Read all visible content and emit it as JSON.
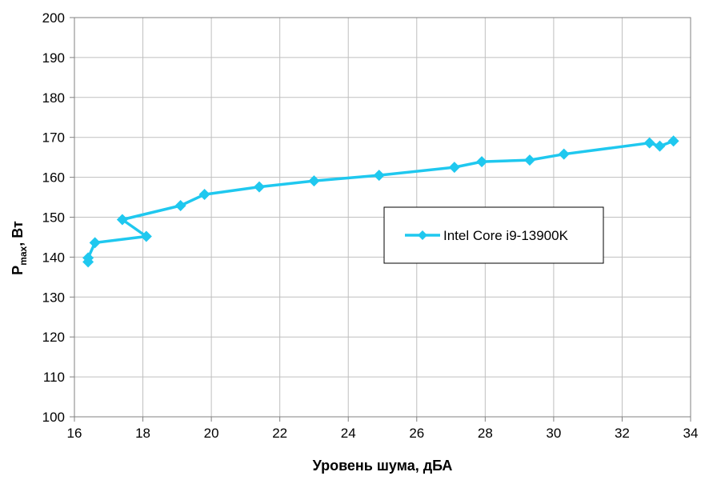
{
  "chart_data": {
    "type": "line",
    "xlabel": "Уровень шума, дБА",
    "ylabel_main": "P",
    "ylabel_sub": "max",
    "ylabel_rest": ", Вт",
    "xlim": [
      16,
      34
    ],
    "ylim": [
      100,
      200
    ],
    "xticks": [
      16,
      18,
      20,
      22,
      24,
      26,
      28,
      30,
      32,
      34
    ],
    "yticks": [
      100,
      110,
      120,
      130,
      140,
      150,
      160,
      170,
      180,
      190,
      200
    ],
    "grid": true,
    "legend_position": "right-middle",
    "series": [
      {
        "name": "Intel Core i9-13900K",
        "color": "#1fc8ef",
        "marker": "diamond",
        "x": [
          16.4,
          16.4,
          16.6,
          18.1,
          17.4,
          19.1,
          19.8,
          21.4,
          23.0,
          24.9,
          27.1,
          27.9,
          29.3,
          30.3,
          32.8,
          33.1,
          33.5
        ],
        "y": [
          138.8,
          139.8,
          143.6,
          145.2,
          149.4,
          152.9,
          155.7,
          157.6,
          159.1,
          160.5,
          162.5,
          163.9,
          164.3,
          165.8,
          168.6,
          167.8,
          169.1
        ]
      }
    ]
  }
}
